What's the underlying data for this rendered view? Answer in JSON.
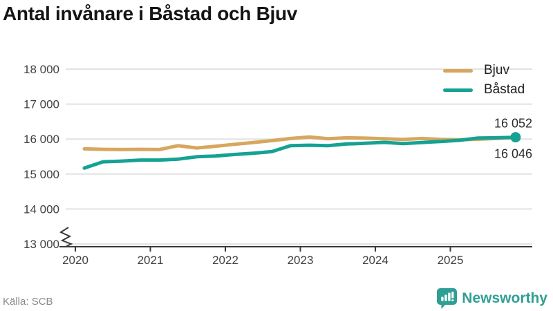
{
  "title": "Antal invånare i Båstad och Bjuv",
  "footer": {
    "source": "Källa: SCB",
    "brand": "Newsworthy"
  },
  "colors": {
    "bjuv": "#d7a75f",
    "bastad": "#15a294",
    "grid": "#e2e2e2",
    "axis": "#3a3a3a",
    "tick_text": "#404040",
    "end_label_text": "#2b2b2b",
    "title_text": "#141414",
    "muted_text": "#8a8a8a",
    "brand_teal": "#2f9e94"
  },
  "chart_data": {
    "type": "line",
    "title": "Antal invånare i Båstad och Bjuv",
    "xlabel": "",
    "ylabel": "",
    "x_ticks": [
      2020,
      2021,
      2022,
      2023,
      2024,
      2025
    ],
    "y_ticks": [
      13000,
      14000,
      15000,
      16000,
      17000,
      18000
    ],
    "ylim": [
      13000,
      18000
    ],
    "y_axis_break": true,
    "grid": "horizontal",
    "legend_position": "top-right",
    "x": [
      2020.12,
      2020.37,
      2020.62,
      2020.87,
      2021.12,
      2021.37,
      2021.62,
      2021.87,
      2022.12,
      2022.37,
      2022.62,
      2022.87,
      2023.12,
      2023.37,
      2023.62,
      2023.87,
      2024.12,
      2024.37,
      2024.62,
      2024.87,
      2025.12,
      2025.37,
      2025.62,
      2025.87
    ],
    "series": [
      {
        "name": "Bjuv",
        "color": "#d7a75f",
        "values": [
          15720,
          15705,
          15700,
          15705,
          15700,
          15810,
          15745,
          15795,
          15850,
          15900,
          15955,
          16015,
          16060,
          16010,
          16035,
          16025,
          16010,
          15990,
          16015,
          15990,
          15980,
          15995,
          16020,
          16046
        ],
        "end_dot": false
      },
      {
        "name": "Båstad",
        "color": "#15a294",
        "values": [
          15170,
          15350,
          15370,
          15400,
          15400,
          15425,
          15495,
          15515,
          15560,
          15595,
          15640,
          15810,
          15825,
          15810,
          15860,
          15880,
          15905,
          15870,
          15900,
          15930,
          15965,
          16030,
          16035,
          16052
        ],
        "end_dot": true
      }
    ],
    "end_labels": [
      {
        "series": "Båstad",
        "value": 16052
      },
      {
        "series": "Bjuv",
        "value": 16046
      }
    ]
  }
}
